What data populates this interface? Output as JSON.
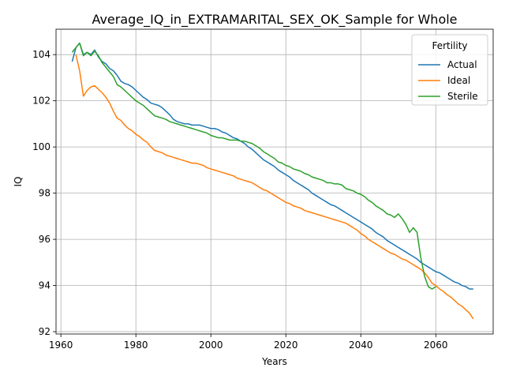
{
  "chart_data": {
    "type": "line",
    "title": "Average_IQ_in_EXTRAMARITAL_SEX_OK_Sample for Whole",
    "xlabel": "Years",
    "ylabel": "IQ",
    "xlim": [
      1958.7,
      2075.3
    ],
    "ylim": [
      91.9,
      105.1
    ],
    "xticks": [
      1960,
      1980,
      2000,
      2020,
      2040,
      2060
    ],
    "yticks": [
      92,
      94,
      96,
      98,
      100,
      102,
      104
    ],
    "grid": true,
    "legend": {
      "title": "Fertility",
      "position": "upper right"
    },
    "series": [
      {
        "name": "Actual",
        "color": "#1f77b4",
        "points": [
          [
            1963,
            103.7
          ],
          [
            1964,
            104.3
          ],
          [
            1965,
            104.5
          ],
          [
            1966,
            104.0
          ],
          [
            1967,
            104.1
          ],
          [
            1968,
            104.0
          ],
          [
            1969,
            104.2
          ],
          [
            1970,
            103.9
          ],
          [
            1971,
            103.7
          ],
          [
            1972,
            103.6
          ],
          [
            1973,
            103.4
          ],
          [
            1974,
            103.3
          ],
          [
            1975,
            103.1
          ],
          [
            1976,
            102.85
          ],
          [
            1977,
            102.75
          ],
          [
            1978,
            102.7
          ],
          [
            1979,
            102.6
          ],
          [
            1980,
            102.45
          ],
          [
            1981,
            102.3
          ],
          [
            1982,
            102.15
          ],
          [
            1983,
            102.05
          ],
          [
            1984,
            101.9
          ],
          [
            1985,
            101.85
          ],
          [
            1986,
            101.8
          ],
          [
            1987,
            101.7
          ],
          [
            1988,
            101.55
          ],
          [
            1989,
            101.4
          ],
          [
            1990,
            101.2
          ],
          [
            1991,
            101.1
          ],
          [
            1992,
            101.05
          ],
          [
            1993,
            101.0
          ],
          [
            1994,
            101.0
          ],
          [
            1995,
            100.95
          ],
          [
            1996,
            100.95
          ],
          [
            1997,
            100.95
          ],
          [
            1998,
            100.9
          ],
          [
            1999,
            100.85
          ],
          [
            2000,
            100.8
          ],
          [
            2001,
            100.8
          ],
          [
            2002,
            100.75
          ],
          [
            2003,
            100.65
          ],
          [
            2004,
            100.6
          ],
          [
            2005,
            100.5
          ],
          [
            2006,
            100.4
          ],
          [
            2007,
            100.35
          ],
          [
            2008,
            100.25
          ],
          [
            2009,
            100.15
          ],
          [
            2010,
            100.0
          ],
          [
            2011,
            99.9
          ],
          [
            2012,
            99.75
          ],
          [
            2013,
            99.6
          ],
          [
            2014,
            99.45
          ],
          [
            2015,
            99.35
          ],
          [
            2016,
            99.25
          ],
          [
            2017,
            99.15
          ],
          [
            2018,
            99.0
          ],
          [
            2019,
            98.9
          ],
          [
            2020,
            98.8
          ],
          [
            2021,
            98.7
          ],
          [
            2022,
            98.55
          ],
          [
            2023,
            98.45
          ],
          [
            2024,
            98.35
          ],
          [
            2025,
            98.25
          ],
          [
            2026,
            98.15
          ],
          [
            2027,
            98.0
          ],
          [
            2028,
            97.9
          ],
          [
            2029,
            97.8
          ],
          [
            2030,
            97.7
          ],
          [
            2031,
            97.6
          ],
          [
            2032,
            97.5
          ],
          [
            2033,
            97.45
          ],
          [
            2034,
            97.35
          ],
          [
            2035,
            97.25
          ],
          [
            2036,
            97.15
          ],
          [
            2037,
            97.05
          ],
          [
            2038,
            96.95
          ],
          [
            2039,
            96.85
          ],
          [
            2040,
            96.75
          ],
          [
            2041,
            96.65
          ],
          [
            2042,
            96.55
          ],
          [
            2043,
            96.45
          ],
          [
            2044,
            96.3
          ],
          [
            2045,
            96.2
          ],
          [
            2046,
            96.1
          ],
          [
            2047,
            95.95
          ],
          [
            2048,
            95.85
          ],
          [
            2049,
            95.75
          ],
          [
            2050,
            95.65
          ],
          [
            2051,
            95.55
          ],
          [
            2052,
            95.45
          ],
          [
            2053,
            95.35
          ],
          [
            2054,
            95.25
          ],
          [
            2055,
            95.15
          ],
          [
            2056,
            95.0
          ],
          [
            2057,
            94.9
          ],
          [
            2058,
            94.8
          ],
          [
            2059,
            94.7
          ],
          [
            2060,
            94.6
          ],
          [
            2061,
            94.55
          ],
          [
            2062,
            94.45
          ],
          [
            2063,
            94.35
          ],
          [
            2064,
            94.25
          ],
          [
            2065,
            94.15
          ],
          [
            2066,
            94.1
          ],
          [
            2067,
            94.0
          ],
          [
            2068,
            93.95
          ],
          [
            2069,
            93.85
          ],
          [
            2070,
            93.85
          ]
        ]
      },
      {
        "name": "Ideal",
        "color": "#ff7f0e",
        "points": [
          [
            1964,
            104.0
          ],
          [
            1965,
            103.3
          ],
          [
            1966,
            102.2
          ],
          [
            1967,
            102.45
          ],
          [
            1968,
            102.6
          ],
          [
            1969,
            102.65
          ],
          [
            1970,
            102.5
          ],
          [
            1971,
            102.35
          ],
          [
            1972,
            102.15
          ],
          [
            1973,
            101.9
          ],
          [
            1974,
            101.55
          ],
          [
            1975,
            101.25
          ],
          [
            1976,
            101.15
          ],
          [
            1977,
            100.95
          ],
          [
            1978,
            100.8
          ],
          [
            1979,
            100.7
          ],
          [
            1980,
            100.55
          ],
          [
            1981,
            100.45
          ],
          [
            1982,
            100.3
          ],
          [
            1983,
            100.2
          ],
          [
            1984,
            100.0
          ],
          [
            1985,
            99.85
          ],
          [
            1986,
            99.8
          ],
          [
            1987,
            99.75
          ],
          [
            1988,
            99.65
          ],
          [
            1989,
            99.6
          ],
          [
            1990,
            99.55
          ],
          [
            1991,
            99.5
          ],
          [
            1992,
            99.45
          ],
          [
            1993,
            99.4
          ],
          [
            1994,
            99.35
          ],
          [
            1995,
            99.3
          ],
          [
            1996,
            99.3
          ],
          [
            1997,
            99.25
          ],
          [
            1998,
            99.2
          ],
          [
            1999,
            99.1
          ],
          [
            2000,
            99.05
          ],
          [
            2001,
            99.0
          ],
          [
            2002,
            98.95
          ],
          [
            2003,
            98.9
          ],
          [
            2004,
            98.85
          ],
          [
            2005,
            98.8
          ],
          [
            2006,
            98.75
          ],
          [
            2007,
            98.65
          ],
          [
            2008,
            98.6
          ],
          [
            2009,
            98.55
          ],
          [
            2010,
            98.5
          ],
          [
            2011,
            98.45
          ],
          [
            2012,
            98.35
          ],
          [
            2013,
            98.25
          ],
          [
            2014,
            98.15
          ],
          [
            2015,
            98.1
          ],
          [
            2016,
            98.0
          ],
          [
            2017,
            97.9
          ],
          [
            2018,
            97.8
          ],
          [
            2019,
            97.7
          ],
          [
            2020,
            97.6
          ],
          [
            2021,
            97.55
          ],
          [
            2022,
            97.45
          ],
          [
            2023,
            97.4
          ],
          [
            2024,
            97.35
          ],
          [
            2025,
            97.25
          ],
          [
            2026,
            97.2
          ],
          [
            2027,
            97.15
          ],
          [
            2028,
            97.1
          ],
          [
            2029,
            97.05
          ],
          [
            2030,
            97.0
          ],
          [
            2031,
            96.95
          ],
          [
            2032,
            96.9
          ],
          [
            2033,
            96.85
          ],
          [
            2034,
            96.8
          ],
          [
            2035,
            96.75
          ],
          [
            2036,
            96.7
          ],
          [
            2037,
            96.6
          ],
          [
            2038,
            96.5
          ],
          [
            2039,
            96.4
          ],
          [
            2040,
            96.25
          ],
          [
            2041,
            96.15
          ],
          [
            2042,
            96.0
          ],
          [
            2043,
            95.9
          ],
          [
            2044,
            95.8
          ],
          [
            2045,
            95.7
          ],
          [
            2046,
            95.6
          ],
          [
            2047,
            95.5
          ],
          [
            2048,
            95.4
          ],
          [
            2049,
            95.35
          ],
          [
            2050,
            95.25
          ],
          [
            2051,
            95.15
          ],
          [
            2052,
            95.1
          ],
          [
            2053,
            95.0
          ],
          [
            2054,
            94.9
          ],
          [
            2055,
            94.8
          ],
          [
            2056,
            94.7
          ],
          [
            2057,
            94.55
          ],
          [
            2058,
            94.35
          ],
          [
            2059,
            94.1
          ],
          [
            2060,
            94.0
          ],
          [
            2061,
            93.85
          ],
          [
            2062,
            93.75
          ],
          [
            2063,
            93.6
          ],
          [
            2064,
            93.5
          ],
          [
            2065,
            93.35
          ],
          [
            2066,
            93.2
          ],
          [
            2067,
            93.1
          ],
          [
            2068,
            92.95
          ],
          [
            2069,
            92.8
          ],
          [
            2070,
            92.55
          ]
        ]
      },
      {
        "name": "Sterile",
        "color": "#2ca02c",
        "points": [
          [
            1963,
            104.1
          ],
          [
            1964,
            104.3
          ],
          [
            1965,
            104.5
          ],
          [
            1966,
            103.95
          ],
          [
            1967,
            104.1
          ],
          [
            1968,
            103.95
          ],
          [
            1969,
            104.15
          ],
          [
            1970,
            103.95
          ],
          [
            1971,
            103.65
          ],
          [
            1972,
            103.45
          ],
          [
            1973,
            103.25
          ],
          [
            1974,
            103.05
          ],
          [
            1975,
            102.7
          ],
          [
            1976,
            102.6
          ],
          [
            1977,
            102.45
          ],
          [
            1978,
            102.3
          ],
          [
            1979,
            102.15
          ],
          [
            1980,
            102.0
          ],
          [
            1981,
            101.9
          ],
          [
            1982,
            101.8
          ],
          [
            1983,
            101.65
          ],
          [
            1984,
            101.5
          ],
          [
            1985,
            101.35
          ],
          [
            1986,
            101.3
          ],
          [
            1987,
            101.25
          ],
          [
            1988,
            101.2
          ],
          [
            1989,
            101.1
          ],
          [
            1990,
            101.05
          ],
          [
            1991,
            101.0
          ],
          [
            1992,
            100.95
          ],
          [
            1993,
            100.9
          ],
          [
            1994,
            100.85
          ],
          [
            1995,
            100.8
          ],
          [
            1996,
            100.75
          ],
          [
            1997,
            100.7
          ],
          [
            1998,
            100.65
          ],
          [
            1999,
            100.6
          ],
          [
            2000,
            100.5
          ],
          [
            2001,
            100.45
          ],
          [
            2002,
            100.4
          ],
          [
            2003,
            100.4
          ],
          [
            2004,
            100.35
          ],
          [
            2005,
            100.3
          ],
          [
            2006,
            100.3
          ],
          [
            2007,
            100.3
          ],
          [
            2008,
            100.25
          ],
          [
            2009,
            100.25
          ],
          [
            2010,
            100.2
          ],
          [
            2011,
            100.15
          ],
          [
            2012,
            100.05
          ],
          [
            2013,
            99.95
          ],
          [
            2014,
            99.8
          ],
          [
            2015,
            99.7
          ],
          [
            2016,
            99.6
          ],
          [
            2017,
            99.5
          ],
          [
            2018,
            99.35
          ],
          [
            2019,
            99.3
          ],
          [
            2020,
            99.2
          ],
          [
            2021,
            99.15
          ],
          [
            2022,
            99.05
          ],
          [
            2023,
            99.0
          ],
          [
            2024,
            98.95
          ],
          [
            2025,
            98.85
          ],
          [
            2026,
            98.8
          ],
          [
            2027,
            98.7
          ],
          [
            2028,
            98.65
          ],
          [
            2029,
            98.6
          ],
          [
            2030,
            98.55
          ],
          [
            2031,
            98.45
          ],
          [
            2032,
            98.45
          ],
          [
            2033,
            98.4
          ],
          [
            2034,
            98.4
          ],
          [
            2035,
            98.35
          ],
          [
            2036,
            98.2
          ],
          [
            2037,
            98.15
          ],
          [
            2038,
            98.1
          ],
          [
            2039,
            98.0
          ],
          [
            2040,
            97.95
          ],
          [
            2041,
            97.85
          ],
          [
            2042,
            97.7
          ],
          [
            2043,
            97.6
          ],
          [
            2044,
            97.45
          ],
          [
            2045,
            97.35
          ],
          [
            2046,
            97.25
          ],
          [
            2047,
            97.1
          ],
          [
            2048,
            97.05
          ],
          [
            2049,
            96.95
          ],
          [
            2050,
            97.1
          ],
          [
            2051,
            96.9
          ],
          [
            2052,
            96.65
          ],
          [
            2053,
            96.3
          ],
          [
            2054,
            96.5
          ],
          [
            2055,
            96.3
          ],
          [
            2056,
            95.2
          ],
          [
            2057,
            94.4
          ],
          [
            2058,
            93.95
          ],
          [
            2059,
            93.85
          ],
          [
            2060,
            93.95
          ]
        ]
      }
    ]
  }
}
